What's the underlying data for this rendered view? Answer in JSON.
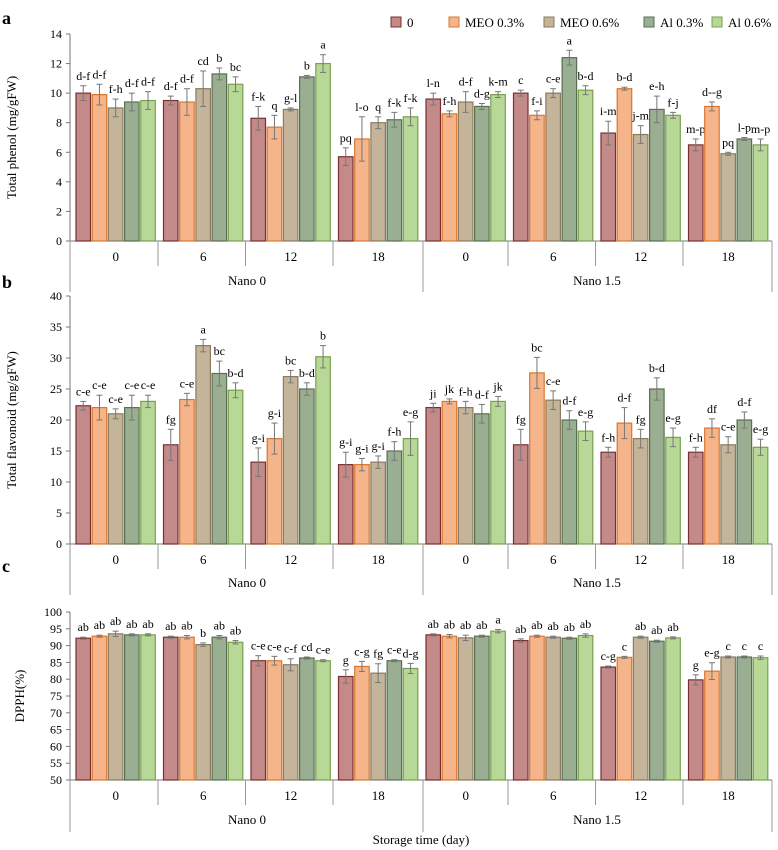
{
  "legend": {
    "entries": [
      "0",
      "MEO 0.3%",
      "MEO 0.6%",
      "Al 0.3%",
      "Al 0.6%"
    ],
    "colors": [
      "#c48a8a",
      "#f5b48a",
      "#c4b49a",
      "#9aae92",
      "#b8d898"
    ],
    "edges": [
      "#7a2f2f",
      "#d9772f",
      "#8a7a5f",
      "#5a6e52",
      "#7aa04f"
    ]
  },
  "chart_data": [
    {
      "type": "bar",
      "panel_label": "a",
      "ylabel": "Total phenol (mg/gFW)",
      "ylim": [
        0,
        14
      ],
      "yticks": [
        0,
        2,
        4,
        6,
        8,
        10,
        12,
        14
      ],
      "groups": [
        "Nano 0",
        "Nano 1.5"
      ],
      "categories": [
        "0",
        "6",
        "12",
        "18"
      ],
      "series_names": [
        "0",
        "MEO 0.3%",
        "MEO 0.6%",
        "Al 0.3%",
        "Al 0.6%"
      ],
      "values": [
        [
          [
            10.0,
            9.9,
            9.0,
            9.4,
            9.5
          ],
          [
            9.5,
            9.4,
            10.3,
            11.3,
            10.6
          ],
          [
            8.3,
            7.7,
            8.9,
            11.1,
            12.0
          ],
          [
            5.7,
            6.9,
            8.0,
            8.2,
            8.4
          ]
        ],
        [
          [
            9.6,
            8.6,
            9.4,
            9.1,
            9.9
          ],
          [
            10.0,
            8.5,
            10.0,
            12.4,
            10.2
          ],
          [
            7.3,
            10.3,
            7.2,
            8.9,
            8.5
          ],
          [
            6.5,
            9.1,
            5.9,
            6.9,
            6.5
          ]
        ]
      ],
      "errors": [
        [
          [
            0.5,
            0.7,
            0.6,
            0.6,
            0.6
          ],
          [
            0.3,
            0.9,
            1.2,
            0.4,
            0.5
          ],
          [
            0.8,
            0.8,
            0.1,
            0.1,
            0.6
          ],
          [
            0.6,
            1.5,
            0.4,
            0.5,
            0.6
          ]
        ],
        [
          [
            0.4,
            0.2,
            0.7,
            0.2,
            0.2
          ],
          [
            0.2,
            0.3,
            0.3,
            0.5,
            0.3
          ],
          [
            0.8,
            0.1,
            0.6,
            0.9,
            0.2
          ],
          [
            0.4,
            0.3,
            0.1,
            0.1,
            0.4
          ]
        ]
      ],
      "letters": [
        [
          [
            "d-f",
            "d-f",
            "f-h",
            "d-f",
            "d-f"
          ],
          [
            "d-f",
            "d-f",
            "cd",
            "b",
            "bc"
          ],
          [
            "f-k",
            "q",
            "g-l",
            "b",
            "a"
          ],
          [
            "pq",
            "l-o",
            "q",
            "f-k",
            "f-k"
          ]
        ],
        [
          [
            "l-n",
            "f-h",
            "d-f",
            "d-g",
            "k-m"
          ],
          [
            "c",
            "f-i",
            "c-e",
            "a",
            "b-d"
          ],
          [
            "i-m",
            "b-d",
            "j-m",
            "e-h",
            "f-j"
          ],
          [
            "m-p",
            "d--g",
            "pq",
            "l-p",
            "m-p"
          ]
        ]
      ]
    },
    {
      "type": "bar",
      "panel_label": "b",
      "ylabel": "Total flavonoid (mg/gFW)",
      "ylim": [
        0,
        40
      ],
      "yticks": [
        0,
        5,
        10,
        15,
        20,
        25,
        30,
        35,
        40
      ],
      "groups": [
        "Nano 0",
        "Nano 1.5"
      ],
      "categories": [
        "0",
        "6",
        "12",
        "18"
      ],
      "series_names": [
        "0",
        "MEO 0.3%",
        "MEO 0.6%",
        "Al 0.3%",
        "Al 0.6%"
      ],
      "values": [
        [
          [
            22.3,
            22.0,
            21.0,
            22.0,
            23.0
          ],
          [
            16.0,
            23.3,
            32.0,
            27.5,
            24.8
          ],
          [
            13.2,
            17.0,
            27.0,
            25.0,
            30.2
          ],
          [
            12.8,
            12.8,
            13.2,
            15.0,
            17.0
          ]
        ],
        [
          [
            22.0,
            23.0,
            22.0,
            21.0,
            23.0
          ],
          [
            16.0,
            27.6,
            23.2,
            20.0,
            18.2
          ],
          [
            14.8,
            19.5,
            17.0,
            25.0,
            17.2
          ],
          [
            14.8,
            18.7,
            16.0,
            20.0,
            15.6
          ]
        ]
      ],
      "errors": [
        [
          [
            0.7,
            2.0,
            0.8,
            2.0,
            1.0
          ],
          [
            2.5,
            1.0,
            1.0,
            2.0,
            1.2
          ],
          [
            2.3,
            2.5,
            1.0,
            1.0,
            1.8
          ],
          [
            2.0,
            1.0,
            1.0,
            1.5,
            2.7
          ]
        ],
        [
          [
            0.7,
            0.4,
            1.0,
            1.5,
            0.8
          ],
          [
            2.5,
            2.5,
            1.5,
            1.5,
            1.5
          ],
          [
            0.8,
            2.5,
            1.5,
            1.8,
            1.5
          ],
          [
            0.8,
            1.5,
            1.3,
            1.3,
            1.3
          ]
        ]
      ],
      "letters": [
        [
          [
            "c-e",
            "c-e",
            "c-e",
            "c-e",
            "c-e"
          ],
          [
            "fg",
            "c-e",
            "a",
            "bc",
            "b-d"
          ],
          [
            "g-i",
            "g-i",
            "bc",
            "b-d",
            "b"
          ],
          [
            "g-i",
            "g-i",
            "g-i",
            "f-h",
            "e-g"
          ]
        ],
        [
          [
            "ji",
            "jk",
            "f-h",
            "d-f",
            "jk"
          ],
          [
            "fg",
            "bc",
            "c-e",
            "d-f",
            "e-g"
          ],
          [
            "f-h",
            "d-f",
            "fg",
            "b-d",
            "e-g"
          ],
          [
            "f-h",
            "df",
            "c-e",
            "d-f",
            "e-g"
          ]
        ]
      ]
    },
    {
      "type": "bar",
      "panel_label": "c",
      "ylabel": "DPPH(%)",
      "xlabel": "Storage time (day)",
      "ylim": [
        50,
        100
      ],
      "yticks": [
        50,
        55,
        60,
        65,
        70,
        75,
        80,
        85,
        90,
        95,
        100
      ],
      "groups": [
        "Nano 0",
        "Nano 1.5"
      ],
      "categories": [
        "0",
        "6",
        "12",
        "18"
      ],
      "series_names": [
        "0",
        "MEO 0.3%",
        "MEO 0.6%",
        "Al 0.3%",
        "Al 0.6%"
      ],
      "values": [
        [
          [
            92.2,
            92.8,
            93.5,
            93.2,
            93.2
          ],
          [
            92.5,
            92.5,
            90.3,
            92.5,
            91.0
          ],
          [
            85.5,
            85.5,
            84.3,
            86.3,
            85.5
          ],
          [
            80.8,
            83.8,
            81.8,
            85.5,
            83.2
          ]
        ],
        [
          [
            93.2,
            92.8,
            92.3,
            92.8,
            94.3
          ],
          [
            91.5,
            92.8,
            92.5,
            92.2,
            93.0
          ],
          [
            83.6,
            86.5,
            92.5,
            91.3,
            92.3
          ],
          [
            79.8,
            82.4,
            86.6,
            86.6,
            86.4
          ]
        ]
      ],
      "errors": [
        [
          [
            0.3,
            0.3,
            0.8,
            0.3,
            0.3
          ],
          [
            0.3,
            0.5,
            0.5,
            0.5,
            0.5
          ],
          [
            1.5,
            1.3,
            1.8,
            0.3,
            0.3
          ],
          [
            2.0,
            1.5,
            2.8,
            0.3,
            1.5
          ]
        ],
        [
          [
            0.3,
            0.5,
            0.8,
            0.3,
            0.5
          ],
          [
            0.5,
            0.3,
            0.3,
            0.3,
            0.5
          ],
          [
            0.3,
            0.3,
            0.3,
            0.3,
            0.3
          ],
          [
            1.5,
            2.5,
            0.3,
            0.3,
            0.5
          ]
        ]
      ],
      "letters": [
        [
          [
            "ab",
            "ab",
            "ab",
            "ab",
            "ab"
          ],
          [
            "ab",
            "ab",
            "b",
            "ab",
            "ab"
          ],
          [
            "c-e",
            "c-e",
            "c-f",
            "cd",
            "c-e"
          ],
          [
            "g",
            "c-g",
            "fg",
            "c-e",
            "d-g"
          ]
        ],
        [
          [
            "ab",
            "ab",
            "ab",
            "ab",
            "a"
          ],
          [
            "ab",
            "ab",
            "ab",
            "ab",
            "ab"
          ],
          [
            "c-g",
            "c",
            "ab",
            "ab",
            "ab"
          ],
          [
            "g",
            "e-g",
            "c",
            "c",
            "c"
          ]
        ]
      ]
    }
  ]
}
